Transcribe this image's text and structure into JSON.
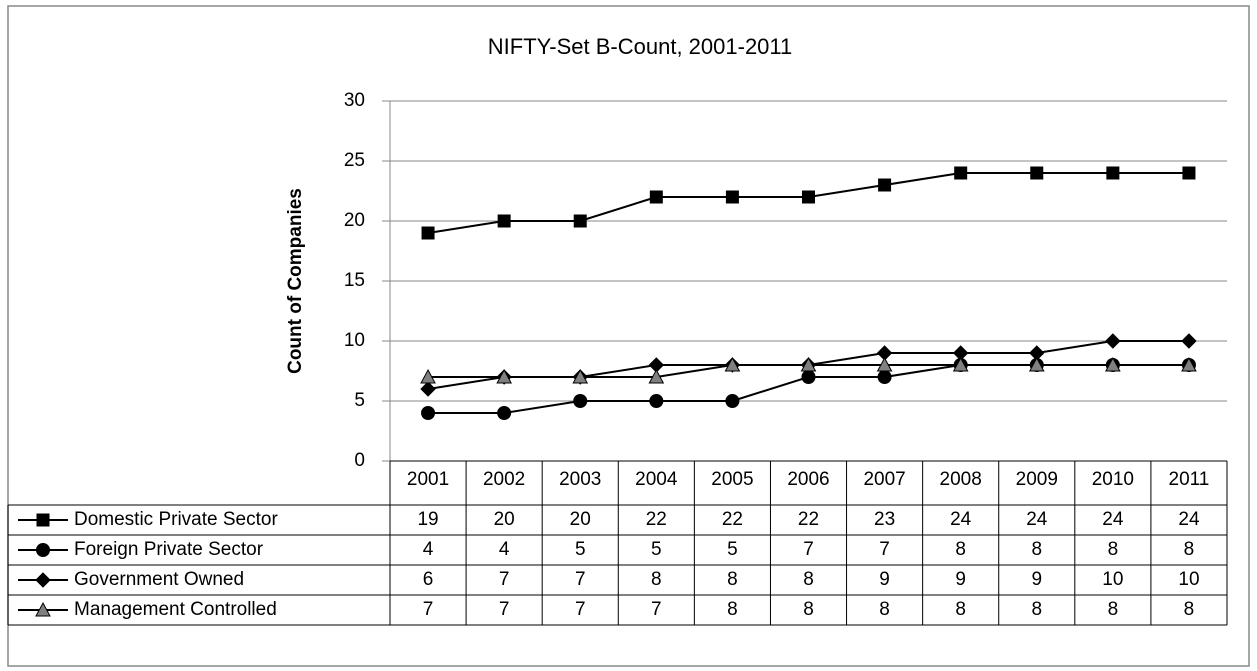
{
  "chart_data": {
    "type": "line",
    "title": "NIFTY-Set B-Count, 2001-2011",
    "y_label": "Count of Companies",
    "categories": [
      "2001",
      "2002",
      "2003",
      "2004",
      "2005",
      "2006",
      "2007",
      "2008",
      "2009",
      "2010",
      "2011"
    ],
    "series": [
      {
        "name": "Domestic Private Sector",
        "color": "#000000",
        "marker": "square",
        "values": [
          19,
          20,
          20,
          22,
          22,
          22,
          23,
          24,
          24,
          24,
          24
        ]
      },
      {
        "name": "Foreign Private Sector",
        "color": "#000000",
        "marker": "circle",
        "values": [
          4,
          4,
          5,
          5,
          5,
          7,
          7,
          8,
          8,
          8,
          8
        ]
      },
      {
        "name": "Government Owned",
        "color": "#000000",
        "marker": "diamond",
        "values": [
          6,
          7,
          7,
          8,
          8,
          8,
          9,
          9,
          9,
          10,
          10
        ]
      },
      {
        "name": "Management Controlled",
        "color": "#000000",
        "marker": "triangle",
        "values": [
          7,
          7,
          7,
          7,
          8,
          8,
          8,
          8,
          8,
          8,
          8
        ]
      }
    ],
    "ylim": [
      0,
      30
    ],
    "yticks": [
      0,
      5,
      10,
      15,
      20,
      25,
      30
    ],
    "grid": true
  }
}
